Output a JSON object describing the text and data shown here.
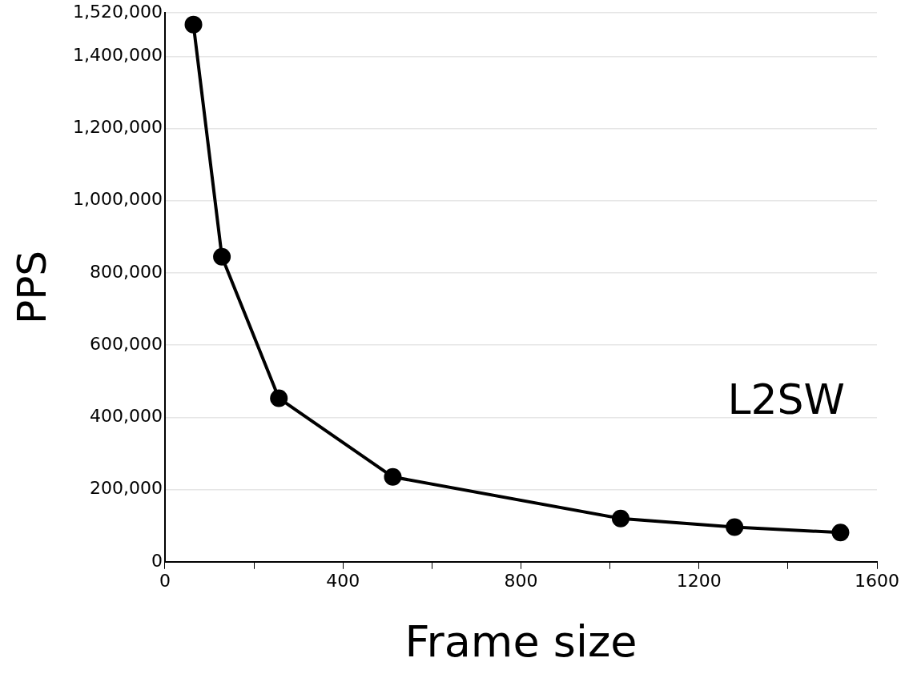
{
  "chart_data": {
    "type": "line",
    "xlabel": "Frame size",
    "ylabel": "PPS",
    "x": [
      64,
      128,
      256,
      512,
      1024,
      1280,
      1518
    ],
    "series": [
      {
        "color": "#000000",
        "values": [
          1488000,
          845000,
          453000,
          235000,
          120000,
          96000,
          81000
        ]
      }
    ],
    "xlim": [
      0,
      1600
    ],
    "xticks": [
      0,
      {
        "value": 200,
        "label": null
      },
      400,
      {
        "value": 600,
        "label": null
      },
      800,
      {
        "value": 1000,
        "label": null
      },
      1200,
      {
        "value": 1400,
        "label": null
      },
      1600
    ],
    "ylim": [
      0,
      1520000
    ],
    "yticks": [
      0,
      {
        "value": 200000,
        "label": "200,000"
      },
      {
        "value": 400000,
        "label": "400,000"
      },
      {
        "value": 600000,
        "label": "600,000"
      },
      {
        "value": 800000,
        "label": "800,000"
      },
      {
        "value": 1000000,
        "label": "1,000,000"
      },
      {
        "value": 1200000,
        "label": "1,200,000"
      },
      {
        "value": 1400000,
        "label": "1,400,000"
      },
      {
        "value": 1520000,
        "label": "1,520,000"
      }
    ],
    "annotations": [
      "L2SW"
    ],
    "grid": "y",
    "marker": "circle",
    "line_style": "solid",
    "legend": false
  }
}
